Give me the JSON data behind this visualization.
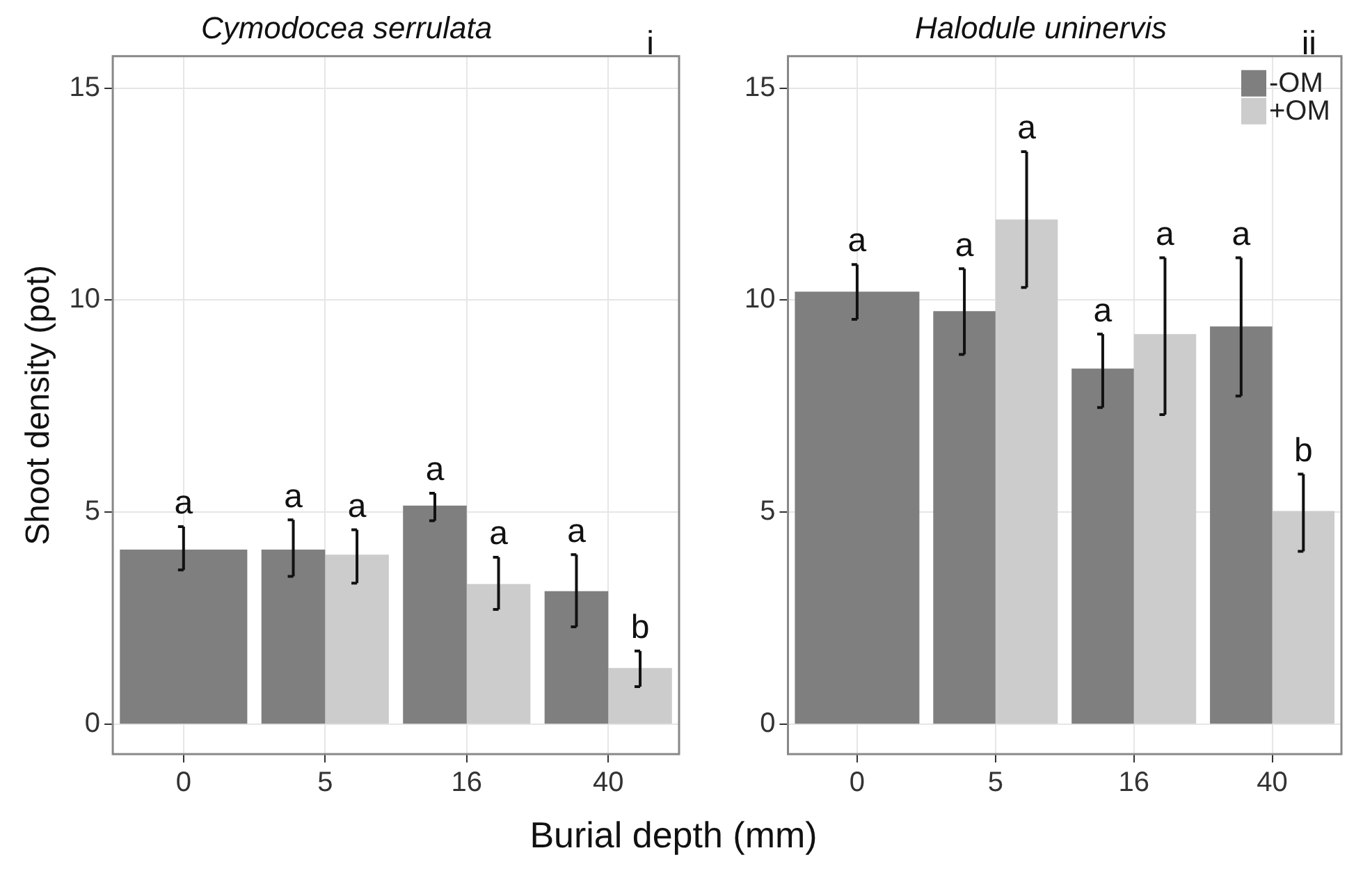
{
  "chart_data": [
    {
      "type": "bar",
      "title": "Cymodocea serrulata",
      "xlabel": "Burial depth (mm)",
      "ylabel": "Shoot density (pot)",
      "annotations": [
        "i"
      ],
      "categories": [
        "0",
        "5",
        "16",
        "40"
      ],
      "ylim": [
        -0.7,
        15.75
      ],
      "yticks": [
        0,
        5,
        10,
        15
      ],
      "grid": true,
      "legend": false,
      "series": [
        {
          "color": "#7f7f7f",
          "values": [
            4.12,
            4.12,
            5.16,
            3.14
          ],
          "errors": [
            [
              3.64,
              4.66
            ],
            [
              3.49,
              4.82
            ],
            [
              4.8,
              5.45
            ],
            [
              2.3,
              4.0
            ]
          ],
          "value_labels": [
            "a",
            "a",
            "a",
            "a"
          ]
        },
        {
          "color": "#cccccc",
          "values": [
            null,
            4.0,
            3.31,
            1.33
          ],
          "errors": [
            null,
            [
              3.33,
              4.59
            ],
            [
              2.71,
              3.94
            ],
            [
              0.89,
              1.73
            ]
          ],
          "value_labels": [
            null,
            "a",
            "a",
            "b"
          ]
        }
      ]
    },
    {
      "type": "bar",
      "title": "Halodule uninervis",
      "annotations": [
        "ii"
      ],
      "categories": [
        "0",
        "5",
        "16",
        "40"
      ],
      "ylim": [
        -0.7,
        15.75
      ],
      "yticks": [
        0,
        5,
        10,
        15
      ],
      "grid": true,
      "legend": "top right",
      "series": [
        {
          "name": "-OM",
          "color": "#7f7f7f",
          "values": [
            10.2,
            9.74,
            8.39,
            9.38
          ],
          "errors": [
            [
              9.55,
              10.84
            ],
            [
              8.72,
              10.74
            ],
            [
              7.47,
              9.2
            ],
            [
              7.74,
              11.0
            ]
          ],
          "value_labels": [
            "a",
            "a",
            "a",
            "a"
          ]
        },
        {
          "name": "+OM",
          "color": "#cccccc",
          "values": [
            null,
            11.9,
            9.2,
            5.03
          ],
          "errors": [
            null,
            [
              10.3,
              13.5
            ],
            [
              7.3,
              11.0
            ],
            [
              4.08,
              5.9
            ]
          ],
          "value_labels": [
            null,
            "a",
            "a",
            "b"
          ]
        }
      ]
    }
  ]
}
